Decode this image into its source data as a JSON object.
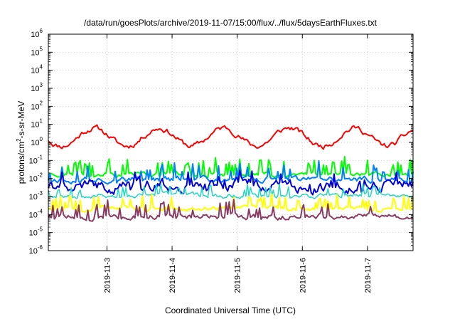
{
  "chart_data": {
    "type": "line",
    "title": "/data/run/goesPlots/archive/2019-11-07/15:00/flux/../flux/5daysEarthFluxes.txt",
    "xlabel": "Coordinated Universal Time (UTC)",
    "ylabel_parts": [
      "protons/cm",
      "2",
      "-s-sr-MeV"
    ],
    "yscale": "log",
    "ylim_exp": [
      -6,
      6
    ],
    "y_tick_exponents": [
      -6,
      -5,
      -4,
      -3,
      -2,
      -1,
      0,
      1,
      2,
      3,
      4,
      5,
      6
    ],
    "y_tick_base": "10",
    "xlim_days": [
      2.1,
      7.7
    ],
    "x_ticks": [
      {
        "label": "2019-11-3",
        "day": 3
      },
      {
        "label": "2019-11-4",
        "day": 4
      },
      {
        "label": "2019-11-5",
        "day": 5
      },
      {
        "label": "2019-11-6",
        "day": 6
      },
      {
        "label": "2019-11-7",
        "day": 7
      }
    ],
    "grid": true,
    "series": [
      {
        "color": "#ff0000",
        "base": 0.3,
        "amp": 0.5,
        "noise": 0.12,
        "spike_p": 0.0,
        "spike_mag": 0,
        "width": 2,
        "seed": 11
      },
      {
        "color": "#00ff00",
        "base": -1.75,
        "amp": 0.0,
        "noise": 0.1,
        "spike_p": 0.18,
        "spike_mag": 0.8,
        "width": 2,
        "seed": 23
      },
      {
        "color": "#0080ff",
        "base": -2.05,
        "amp": 0.0,
        "noise": 0.12,
        "spike_p": 0.15,
        "spike_mag": 0.9,
        "width": 2,
        "seed": 37
      },
      {
        "color": "#0000dd",
        "base": -2.4,
        "amp": 0.0,
        "noise": 0.25,
        "spike_p": 0.12,
        "spike_mag": 0.6,
        "width": 2,
        "seed": 41
      },
      {
        "color": "#22d8c0",
        "base": -2.95,
        "amp": 0.0,
        "noise": 0.1,
        "spike_p": 0.12,
        "spike_mag": 0.6,
        "width": 1.5,
        "seed": 53
      },
      {
        "color": "#ffff00",
        "base": -3.65,
        "amp": 0.0,
        "noise": 0.1,
        "spike_p": 0.14,
        "spike_mag": 0.7,
        "width": 2,
        "seed": 67
      },
      {
        "color": "#8b3a62",
        "base": -4.1,
        "amp": 0.0,
        "noise": 0.12,
        "spike_p": 0.18,
        "spike_mag": 0.8,
        "width": 2,
        "seed": 79
      }
    ]
  }
}
